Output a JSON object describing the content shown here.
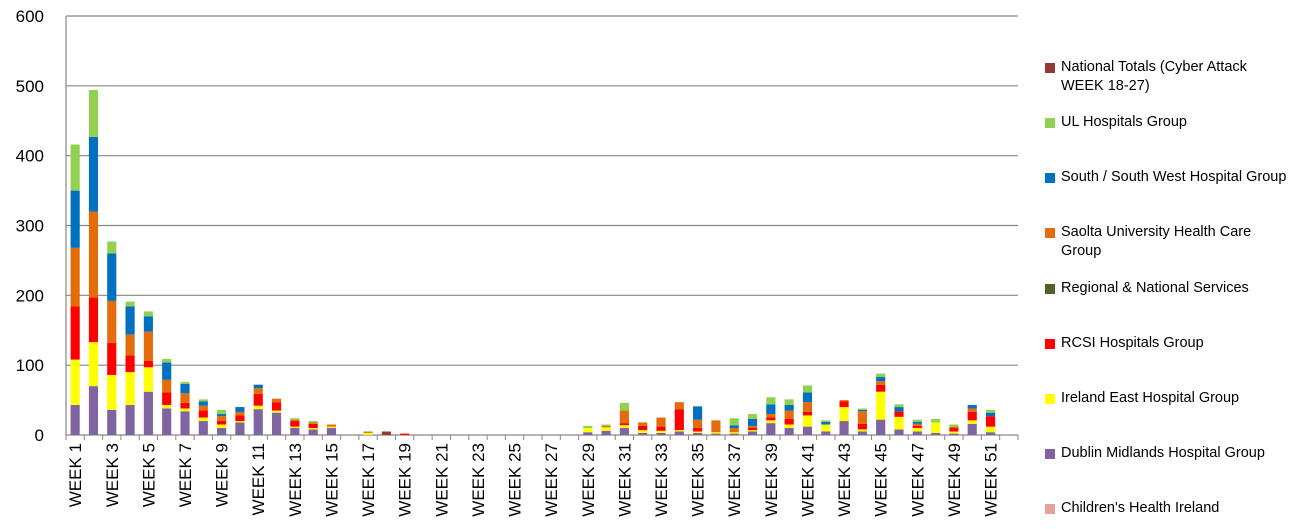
{
  "chart_data": {
    "type": "bar",
    "stacked": true,
    "ylim": [
      0,
      600
    ],
    "yticks": [
      0,
      100,
      200,
      300,
      400,
      500,
      600
    ],
    "grid": true,
    "legend_position": "right",
    "categories": [
      "WEEK 1",
      "WEEK 2",
      "WEEK 3",
      "WEEK 4",
      "WEEK 5",
      "WEEK 6",
      "WEEK 7",
      "WEEK 8",
      "WEEK 9",
      "WEEK 10",
      "WEEK 11",
      "WEEK 12",
      "WEEK 13",
      "WEEK 14",
      "WEEK 15",
      "WEEK 16",
      "WEEK 17",
      "WEEK 18",
      "WEEK 19",
      "WEEK 20",
      "WEEK 21",
      "WEEK 22",
      "WEEK 23",
      "WEEK 24",
      "WEEK 25",
      "WEEK 26",
      "WEEK 27",
      "WEEK 28",
      "WEEK 29",
      "WEEK 30",
      "WEEK 31",
      "WEEK 32",
      "WEEK 33",
      "WEEK 34",
      "WEEK 35",
      "WEEK 36",
      "WEEK 37",
      "WEEK 38",
      "WEEK 39",
      "WEEK 40",
      "WEEK 41",
      "WEEK 42",
      "WEEK 43",
      "WEEK 44",
      "WEEK 45",
      "WEEK 46",
      "WEEK 47",
      "WEEK 48",
      "WEEK 49",
      "WEEK 50",
      "WEEK 51",
      "WEEK 52"
    ],
    "x_tick_labels": [
      "WEEK 1",
      "WEEK 3",
      "WEEK 5",
      "WEEK 7",
      "WEEK 9",
      "WEEK 11",
      "WEEK 13",
      "WEEK 15",
      "WEEK 17",
      "WEEK 19",
      "WEEK 21",
      "WEEK 23",
      "WEEK 25",
      "WEEK 27",
      "WEEK 29",
      "WEEK 31",
      "WEEK 33",
      "WEEK 35",
      "WEEK 37",
      "WEEK 39",
      "WEEK 41",
      "WEEK 43",
      "WEEK 45",
      "WEEK 47",
      "WEEK 49",
      "WEEK 51"
    ],
    "series": [
      {
        "name": "Children's Health Ireland",
        "color": "#e6a0a0",
        "values": [
          0,
          0,
          0,
          0,
          0,
          0,
          0,
          0,
          0,
          0,
          0,
          0,
          0,
          0,
          0,
          0,
          0,
          0,
          0,
          0,
          0,
          0,
          0,
          0,
          0,
          0,
          0,
          0,
          0,
          0,
          0,
          0,
          0,
          0,
          0,
          0,
          0,
          0,
          0,
          0,
          0,
          0,
          0,
          0,
          0,
          0,
          0,
          0,
          0,
          0,
          0,
          0
        ]
      },
      {
        "name": "Dublin Midlands Hospital Group",
        "color": "#8064a2",
        "values": [
          43,
          70,
          36,
          43,
          62,
          38,
          34,
          20,
          10,
          18,
          37,
          32,
          10,
          8,
          10,
          0,
          0,
          0,
          0,
          0,
          0,
          0,
          0,
          0,
          0,
          0,
          0,
          0,
          4,
          6,
          10,
          3,
          3,
          5,
          3,
          2,
          2,
          5,
          17,
          10,
          12,
          5,
          20,
          5,
          22,
          8,
          5,
          3,
          2,
          16,
          4,
          0
        ]
      },
      {
        "name": "Ireland East Hospital Group",
        "color": "#ffff00",
        "values": [
          65,
          63,
          50,
          47,
          35,
          5,
          4,
          5,
          5,
          2,
          5,
          3,
          2,
          2,
          2,
          0,
          3,
          0,
          0,
          0,
          0,
          0,
          0,
          0,
          0,
          0,
          0,
          0,
          6,
          5,
          4,
          4,
          3,
          2,
          2,
          2,
          2,
          2,
          4,
          5,
          16,
          10,
          20,
          3,
          40,
          18,
          5,
          15,
          3,
          5,
          8,
          0
        ]
      },
      {
        "name": "RCSI Hospitals Group",
        "color": "#ff0000",
        "values": [
          76,
          64,
          46,
          24,
          9,
          18,
          8,
          10,
          5,
          8,
          17,
          12,
          8,
          6,
          0,
          0,
          0,
          0,
          2,
          0,
          0,
          0,
          0,
          0,
          0,
          0,
          0,
          0,
          0,
          0,
          3,
          6,
          6,
          30,
          5,
          0,
          0,
          3,
          4,
          8,
          5,
          0,
          8,
          8,
          10,
          8,
          3,
          0,
          5,
          12,
          15,
          0
        ]
      },
      {
        "name": "Regional & National Services",
        "color": "#4f6228",
        "values": [
          0,
          0,
          0,
          0,
          0,
          0,
          0,
          0,
          0,
          0,
          0,
          0,
          0,
          0,
          0,
          0,
          0,
          0,
          0,
          0,
          0,
          0,
          0,
          0,
          0,
          0,
          0,
          0,
          0,
          0,
          0,
          0,
          0,
          0,
          0,
          0,
          0,
          0,
          0,
          0,
          0,
          0,
          0,
          0,
          0,
          0,
          0,
          0,
          0,
          0,
          0,
          0
        ]
      },
      {
        "name": "Saolta University Health Care Group",
        "color": "#e46c0a",
        "values": [
          84,
          123,
          60,
          30,
          42,
          18,
          14,
          7,
          7,
          5,
          8,
          5,
          2,
          2,
          3,
          0,
          2,
          0,
          0,
          0,
          0,
          0,
          0,
          0,
          0,
          0,
          0,
          0,
          0,
          2,
          18,
          5,
          13,
          10,
          12,
          17,
          6,
          3,
          5,
          12,
          14,
          0,
          2,
          18,
          5,
          0,
          3,
          0,
          2,
          5,
          0,
          0
        ]
      },
      {
        "name": "South / South West Hospital Group",
        "color": "#0070c0",
        "values": [
          82,
          107,
          68,
          40,
          22,
          25,
          13,
          6,
          3,
          7,
          5,
          0,
          0,
          0,
          0,
          0,
          0,
          0,
          0,
          0,
          0,
          0,
          0,
          0,
          0,
          0,
          0,
          0,
          0,
          0,
          0,
          0,
          0,
          0,
          19,
          0,
          4,
          10,
          14,
          8,
          14,
          4,
          0,
          2,
          6,
          6,
          3,
          0,
          0,
          5,
          5,
          0
        ]
      },
      {
        "name": "UL Hospitals Group",
        "color": "#92d050",
        "values": [
          66,
          67,
          17,
          7,
          7,
          5,
          3,
          3,
          6,
          0,
          0,
          0,
          2,
          2,
          0,
          0,
          0,
          0,
          0,
          0,
          0,
          0,
          0,
          0,
          0,
          0,
          0,
          0,
          3,
          2,
          11,
          0,
          0,
          0,
          0,
          0,
          10,
          7,
          10,
          8,
          10,
          2,
          0,
          2,
          5,
          4,
          3,
          5,
          3,
          0,
          4,
          0
        ]
      },
      {
        "name": "National Totals (Cyber Attack WEEK 18-27)",
        "color": "#953735",
        "values": [
          0,
          0,
          0,
          0,
          0,
          0,
          0,
          0,
          0,
          0,
          0,
          0,
          0,
          0,
          0,
          0,
          0,
          5,
          0,
          0,
          0,
          0,
          0,
          0,
          0,
          0,
          0,
          0,
          0,
          0,
          0,
          0,
          0,
          0,
          0,
          0,
          0,
          0,
          0,
          0,
          0,
          0,
          0,
          0,
          0,
          0,
          0,
          0,
          0,
          0,
          0,
          0
        ]
      }
    ],
    "legend_order": [
      "National Totals (Cyber Attack WEEK 18-27)",
      "UL Hospitals Group",
      "South / South West Hospital Group",
      "Saolta University Health Care Group",
      "Regional & National Services",
      "RCSI Hospitals Group",
      "Ireland East Hospital Group",
      "Dublin Midlands Hospital Group",
      "Children's Health Ireland"
    ]
  }
}
